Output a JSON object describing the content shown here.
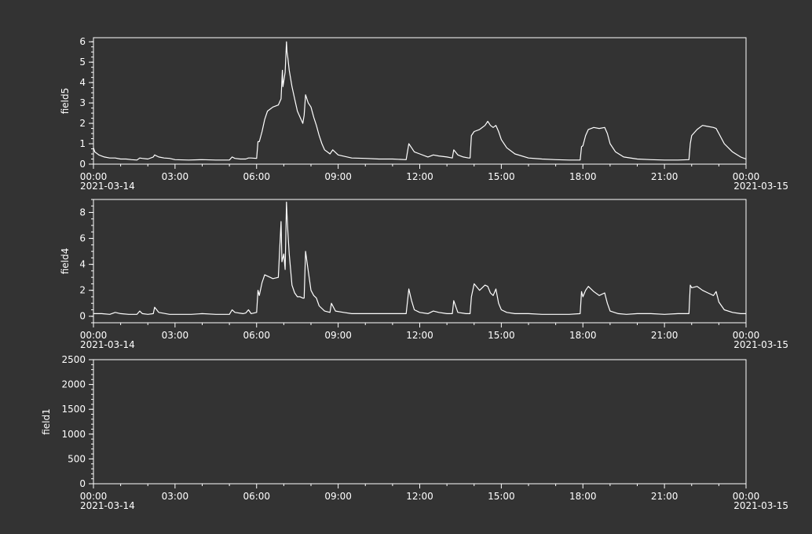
{
  "chart_data": [
    {
      "type": "line",
      "ylabel": "field5",
      "ylim": [
        0,
        6.2
      ],
      "yticks": [
        0,
        1,
        2,
        3,
        4,
        5,
        6
      ],
      "xlim": [
        0,
        24
      ],
      "xticks": [
        0,
        3,
        6,
        9,
        12,
        15,
        18,
        21,
        24
      ],
      "xtick_labels": [
        "00:00",
        "03:00",
        "06:00",
        "09:00",
        "12:00",
        "15:00",
        "18:00",
        "21:00",
        "00:00"
      ],
      "date_labels": {
        "start": "2021-03-14",
        "end": "2021-03-15"
      },
      "grid": false,
      "series": [
        {
          "x": [
            0,
            0.05,
            0.2,
            0.4,
            0.6,
            0.8,
            1.0,
            1.2,
            1.4,
            1.6,
            1.7,
            1.8,
            2.0,
            2.2,
            2.25,
            2.4,
            2.6,
            2.8,
            3.0,
            3.5,
            4.0,
            4.5,
            5.0,
            5.1,
            5.2,
            5.4,
            5.6,
            5.7,
            5.8,
            6.0,
            6.05,
            6.1,
            6.2,
            6.3,
            6.4,
            6.5,
            6.6,
            6.8,
            6.9,
            6.95,
            6.97,
            7.05,
            7.1,
            7.12,
            7.15,
            7.2,
            7.3,
            7.4,
            7.5,
            7.6,
            7.7,
            7.75,
            7.8,
            7.9,
            8.0,
            8.1,
            8.2,
            8.3,
            8.4,
            8.5,
            8.6,
            8.7,
            8.8,
            9.0,
            9.5,
            10.0,
            10.5,
            11.0,
            11.5,
            11.6,
            11.7,
            11.8,
            12.0,
            12.3,
            12.5,
            12.7,
            13.0,
            13.2,
            13.25,
            13.4,
            13.6,
            13.8,
            13.85,
            13.9,
            14.0,
            14.2,
            14.4,
            14.5,
            14.6,
            14.7,
            14.8,
            14.9,
            15.0,
            15.2,
            15.5,
            16.0,
            16.5,
            17.0,
            17.5,
            17.9,
            17.95,
            18.0,
            18.1,
            18.2,
            18.4,
            18.6,
            18.8,
            18.9,
            19.0,
            19.2,
            19.5,
            20.0,
            20.5,
            21.0,
            21.5,
            21.9,
            21.95,
            22.0,
            22.2,
            22.4,
            22.6,
            22.8,
            22.9,
            23.0,
            23.2,
            23.5,
            23.8,
            24.0
          ],
          "y": [
            0.8,
            0.6,
            0.45,
            0.35,
            0.3,
            0.3,
            0.25,
            0.25,
            0.22,
            0.2,
            0.3,
            0.28,
            0.25,
            0.35,
            0.45,
            0.35,
            0.3,
            0.28,
            0.22,
            0.2,
            0.22,
            0.2,
            0.2,
            0.35,
            0.28,
            0.25,
            0.25,
            0.3,
            0.3,
            0.28,
            1.1,
            1.1,
            1.6,
            2.2,
            2.6,
            2.7,
            2.8,
            2.9,
            3.2,
            4.6,
            3.8,
            4.5,
            6.0,
            5.5,
            5.2,
            4.6,
            3.8,
            3.2,
            2.6,
            2.3,
            2.0,
            2.4,
            3.4,
            3.0,
            2.8,
            2.3,
            1.9,
            1.4,
            1.0,
            0.7,
            0.6,
            0.5,
            0.7,
            0.45,
            0.3,
            0.28,
            0.25,
            0.25,
            0.22,
            1.0,
            0.8,
            0.6,
            0.5,
            0.35,
            0.45,
            0.4,
            0.35,
            0.3,
            0.7,
            0.45,
            0.35,
            0.3,
            0.3,
            1.4,
            1.6,
            1.7,
            1.9,
            2.1,
            1.9,
            1.8,
            1.9,
            1.6,
            1.2,
            0.8,
            0.5,
            0.3,
            0.25,
            0.22,
            0.2,
            0.2,
            0.85,
            0.9,
            1.4,
            1.7,
            1.8,
            1.75,
            1.8,
            1.5,
            1.0,
            0.6,
            0.35,
            0.25,
            0.22,
            0.2,
            0.2,
            0.22,
            1.0,
            1.4,
            1.7,
            1.9,
            1.85,
            1.8,
            1.75,
            1.5,
            1.0,
            0.6,
            0.35,
            0.25
          ]
        }
      ]
    },
    {
      "type": "line",
      "ylabel": "field4",
      "ylim": [
        -0.5,
        9
      ],
      "yticks": [
        0,
        2,
        4,
        6,
        8
      ],
      "xlim": [
        0,
        24
      ],
      "xticks": [
        0,
        3,
        6,
        9,
        12,
        15,
        18,
        21,
        24
      ],
      "xtick_labels": [
        "00:00",
        "03:00",
        "06:00",
        "09:00",
        "12:00",
        "15:00",
        "18:00",
        "21:00",
        "00:00"
      ],
      "date_labels": {
        "start": "2021-03-14",
        "end": "2021-03-15"
      },
      "grid": false,
      "series": [
        {
          "x": [
            0,
            0.3,
            0.6,
            0.8,
            1.0,
            1.3,
            1.6,
            1.7,
            1.8,
            2.0,
            2.2,
            2.25,
            2.4,
            2.8,
            3.2,
            3.6,
            4.0,
            4.5,
            5.0,
            5.1,
            5.2,
            5.5,
            5.6,
            5.7,
            5.8,
            6.0,
            6.05,
            6.1,
            6.2,
            6.3,
            6.5,
            6.6,
            6.8,
            6.9,
            6.93,
            7.0,
            7.05,
            7.1,
            7.12,
            7.15,
            7.2,
            7.3,
            7.4,
            7.5,
            7.6,
            7.7,
            7.75,
            7.8,
            7.9,
            8.0,
            8.1,
            8.2,
            8.3,
            8.5,
            8.7,
            8.75,
            8.9,
            9.2,
            9.5,
            10.0,
            10.5,
            11.0,
            11.5,
            11.6,
            11.7,
            11.8,
            12.0,
            12.3,
            12.5,
            12.7,
            13.0,
            13.2,
            13.25,
            13.4,
            13.7,
            13.85,
            13.9,
            14.0,
            14.2,
            14.4,
            14.5,
            14.6,
            14.7,
            14.8,
            14.9,
            15.0,
            15.2,
            15.5,
            16.0,
            16.5,
            17.0,
            17.5,
            17.9,
            17.95,
            18.0,
            18.1,
            18.2,
            18.4,
            18.6,
            18.8,
            18.9,
            19.0,
            19.3,
            19.6,
            20.0,
            20.5,
            21.0,
            21.5,
            21.9,
            21.95,
            22.0,
            22.2,
            22.4,
            22.6,
            22.8,
            22.9,
            23.0,
            23.2,
            23.5,
            23.8,
            24.0
          ],
          "y": [
            0.2,
            0.2,
            0.15,
            0.3,
            0.2,
            0.15,
            0.15,
            0.4,
            0.2,
            0.15,
            0.2,
            0.7,
            0.3,
            0.15,
            0.15,
            0.15,
            0.2,
            0.15,
            0.15,
            0.5,
            0.3,
            0.2,
            0.25,
            0.5,
            0.2,
            0.3,
            2.0,
            1.6,
            2.6,
            3.2,
            3.0,
            2.9,
            3.0,
            7.3,
            4.2,
            4.8,
            3.6,
            8.8,
            7.8,
            6.5,
            4.8,
            2.4,
            1.8,
            1.5,
            1.5,
            1.4,
            1.4,
            5.0,
            3.5,
            2.0,
            1.6,
            1.4,
            0.8,
            0.4,
            0.3,
            1.0,
            0.4,
            0.3,
            0.2,
            0.2,
            0.2,
            0.2,
            0.2,
            2.1,
            1.2,
            0.5,
            0.3,
            0.2,
            0.4,
            0.3,
            0.2,
            0.2,
            1.2,
            0.3,
            0.2,
            0.2,
            1.5,
            2.5,
            2.0,
            2.4,
            2.3,
            1.8,
            1.6,
            2.1,
            1.0,
            0.5,
            0.3,
            0.2,
            0.2,
            0.15,
            0.15,
            0.15,
            0.2,
            1.9,
            1.5,
            2.0,
            2.3,
            1.9,
            1.6,
            1.8,
            1.0,
            0.4,
            0.2,
            0.15,
            0.2,
            0.2,
            0.15,
            0.2,
            0.2,
            2.4,
            2.2,
            2.3,
            2.0,
            1.8,
            1.6,
            1.9,
            1.1,
            0.5,
            0.3,
            0.2,
            0.2
          ]
        }
      ]
    },
    {
      "type": "line",
      "ylabel": "field1",
      "ylim": [
        0,
        2500
      ],
      "yticks": [
        0,
        500,
        1000,
        1500,
        2000,
        2500
      ],
      "xlim": [
        0,
        24
      ],
      "xticks": [
        0,
        3,
        6,
        9,
        12,
        15,
        18,
        21,
        24
      ],
      "xtick_labels": [
        "00:00",
        "03:00",
        "06:00",
        "09:00",
        "12:00",
        "15:00",
        "18:00",
        "21:00",
        "00:00"
      ],
      "date_labels": {
        "start": "2021-03-14",
        "end": "2021-03-15"
      },
      "grid": false,
      "series": []
    }
  ],
  "colors": {
    "background": "#333333",
    "axes": "#ffffff",
    "line": "#ffffff",
    "text": "#ffffff"
  }
}
